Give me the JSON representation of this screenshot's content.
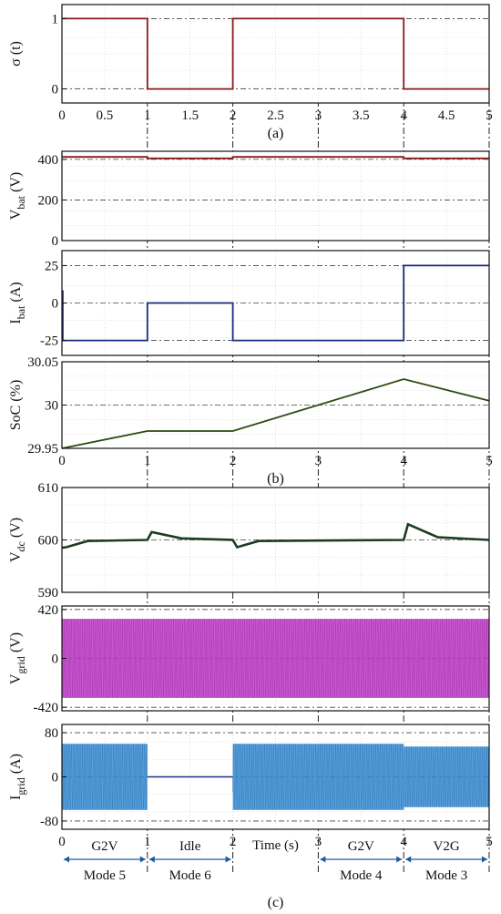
{
  "chart_data": [
    {
      "panel": "a",
      "type": "line",
      "ylabel": "σ (t)",
      "ylim": [
        -0.2,
        1.2
      ],
      "yticks": [
        "0",
        "1"
      ],
      "xticks": [
        "0",
        "0.5",
        "1",
        "1.5",
        "2",
        "2.5",
        "3",
        "3.5",
        "4",
        "4.5",
        "5"
      ],
      "xlim": [
        0,
        5
      ],
      "color": "#8b1a1a",
      "series": [
        {
          "x": [
            0,
            1,
            1,
            2,
            2,
            4,
            4,
            5
          ],
          "y": [
            1,
            1,
            0,
            0,
            1,
            1,
            0,
            0
          ]
        }
      ],
      "caption": "(a)"
    },
    {
      "panel": "vbat",
      "type": "line",
      "ylabel_main": "V",
      "ylabel_sub": "bat",
      "ylabel_unit": " (V)",
      "ylim": [
        0,
        440
      ],
      "yticks": [
        "0",
        "200",
        "400"
      ],
      "xlim": [
        0,
        5
      ],
      "color": "#8b1a1a",
      "series": [
        {
          "x": [
            0,
            1,
            1,
            2,
            2,
            4,
            4,
            5
          ],
          "y": [
            412,
            412,
            405,
            405,
            412,
            412,
            405,
            405
          ]
        }
      ]
    },
    {
      "panel": "ibat",
      "type": "line",
      "ylabel_main": "I",
      "ylabel_sub": "bat",
      "ylabel_unit": " (A)",
      "ylim": [
        -35,
        35
      ],
      "yticks": [
        "-25",
        "0",
        "25"
      ],
      "xlim": [
        0,
        5
      ],
      "color": "#1a2a7a",
      "series": [
        {
          "x": [
            0,
            0.01,
            0.01,
            1,
            1,
            2,
            2,
            4,
            4,
            5
          ],
          "y": [
            8,
            8,
            -25,
            -25,
            0,
            0,
            -25,
            -25,
            25,
            25
          ]
        }
      ]
    },
    {
      "panel": "soc",
      "type": "line",
      "ylabel": "SoC (%)",
      "ylim": [
        29.95,
        30.05
      ],
      "yticks": [
        "29.95",
        "30",
        "30.05"
      ],
      "xticks": [
        "0",
        "1",
        "2",
        "3",
        "4",
        "5"
      ],
      "xlim": [
        0,
        5
      ],
      "color": "#2e4a12",
      "series": [
        {
          "x": [
            0,
            1,
            2,
            4,
            5
          ],
          "y": [
            29.95,
            29.97,
            29.97,
            30.03,
            30.005
          ]
        }
      ],
      "caption": "(b)"
    },
    {
      "panel": "vdc",
      "type": "line",
      "ylabel_main": "V",
      "ylabel_sub": "dc",
      "ylabel_unit": " (V)",
      "ylim": [
        590,
        610
      ],
      "yticks": [
        "590",
        "600",
        "610"
      ],
      "xlim": [
        0,
        5
      ],
      "color": "#1d3d22",
      "series": [
        {
          "x": [
            0,
            0.05,
            0.3,
            1,
            1,
            1.05,
            1.4,
            2,
            2,
            2.05,
            2.3,
            4,
            4,
            4.05,
            4.4,
            5
          ],
          "y": [
            598.5,
            598.6,
            599.8,
            600,
            600,
            601.5,
            600.3,
            600,
            600,
            598.6,
            599.8,
            600,
            600,
            603,
            600.5,
            600
          ]
        }
      ]
    },
    {
      "panel": "vgrid",
      "type": "area",
      "ylabel_main": "V",
      "ylabel_sub": "grid",
      "ylabel_unit": " (V)",
      "ylim": [
        -450,
        450
      ],
      "yticks": [
        "-420",
        "0",
        "420"
      ],
      "xlim": [
        0,
        5
      ],
      "color": "#c23cc8",
      "series": [
        {
          "x": [
            0,
            5
          ],
          "amplitude": [
            340,
            340
          ]
        }
      ]
    },
    {
      "panel": "igrid",
      "type": "area",
      "ylabel_main": "I",
      "ylabel_sub": "grid",
      "ylabel_unit": " (A)",
      "ylim": [
        -95,
        95
      ],
      "yticks": [
        "-80",
        "0",
        "80"
      ],
      "xticks": [
        "0",
        "1",
        "2",
        "3",
        "4",
        "5"
      ],
      "xlim": [
        0,
        5
      ],
      "xlabel": "Time (s)",
      "color": "#3a8fd4",
      "series": [
        {
          "x": [
            0,
            1,
            1,
            2,
            2,
            4,
            4,
            5
          ],
          "amplitude": [
            60,
            60,
            0,
            0,
            60,
            60,
            55,
            55
          ]
        }
      ],
      "caption": "(c)"
    }
  ],
  "modes": {
    "top": [
      {
        "label": "G2V",
        "from": 0,
        "to": 1
      },
      {
        "label": "Idle",
        "from": 1,
        "to": 2
      },
      {
        "label": "G2V",
        "from": 3,
        "to": 4
      },
      {
        "label": "V2G",
        "from": 4,
        "to": 5
      }
    ],
    "bottom": [
      {
        "label": "Mode 5",
        "from": 0,
        "to": 1
      },
      {
        "label": "Mode 6",
        "from": 1,
        "to": 2
      },
      {
        "label": "Mode 4",
        "from": 3,
        "to": 4
      },
      {
        "label": "Mode 3",
        "from": 4,
        "to": 5
      }
    ]
  }
}
